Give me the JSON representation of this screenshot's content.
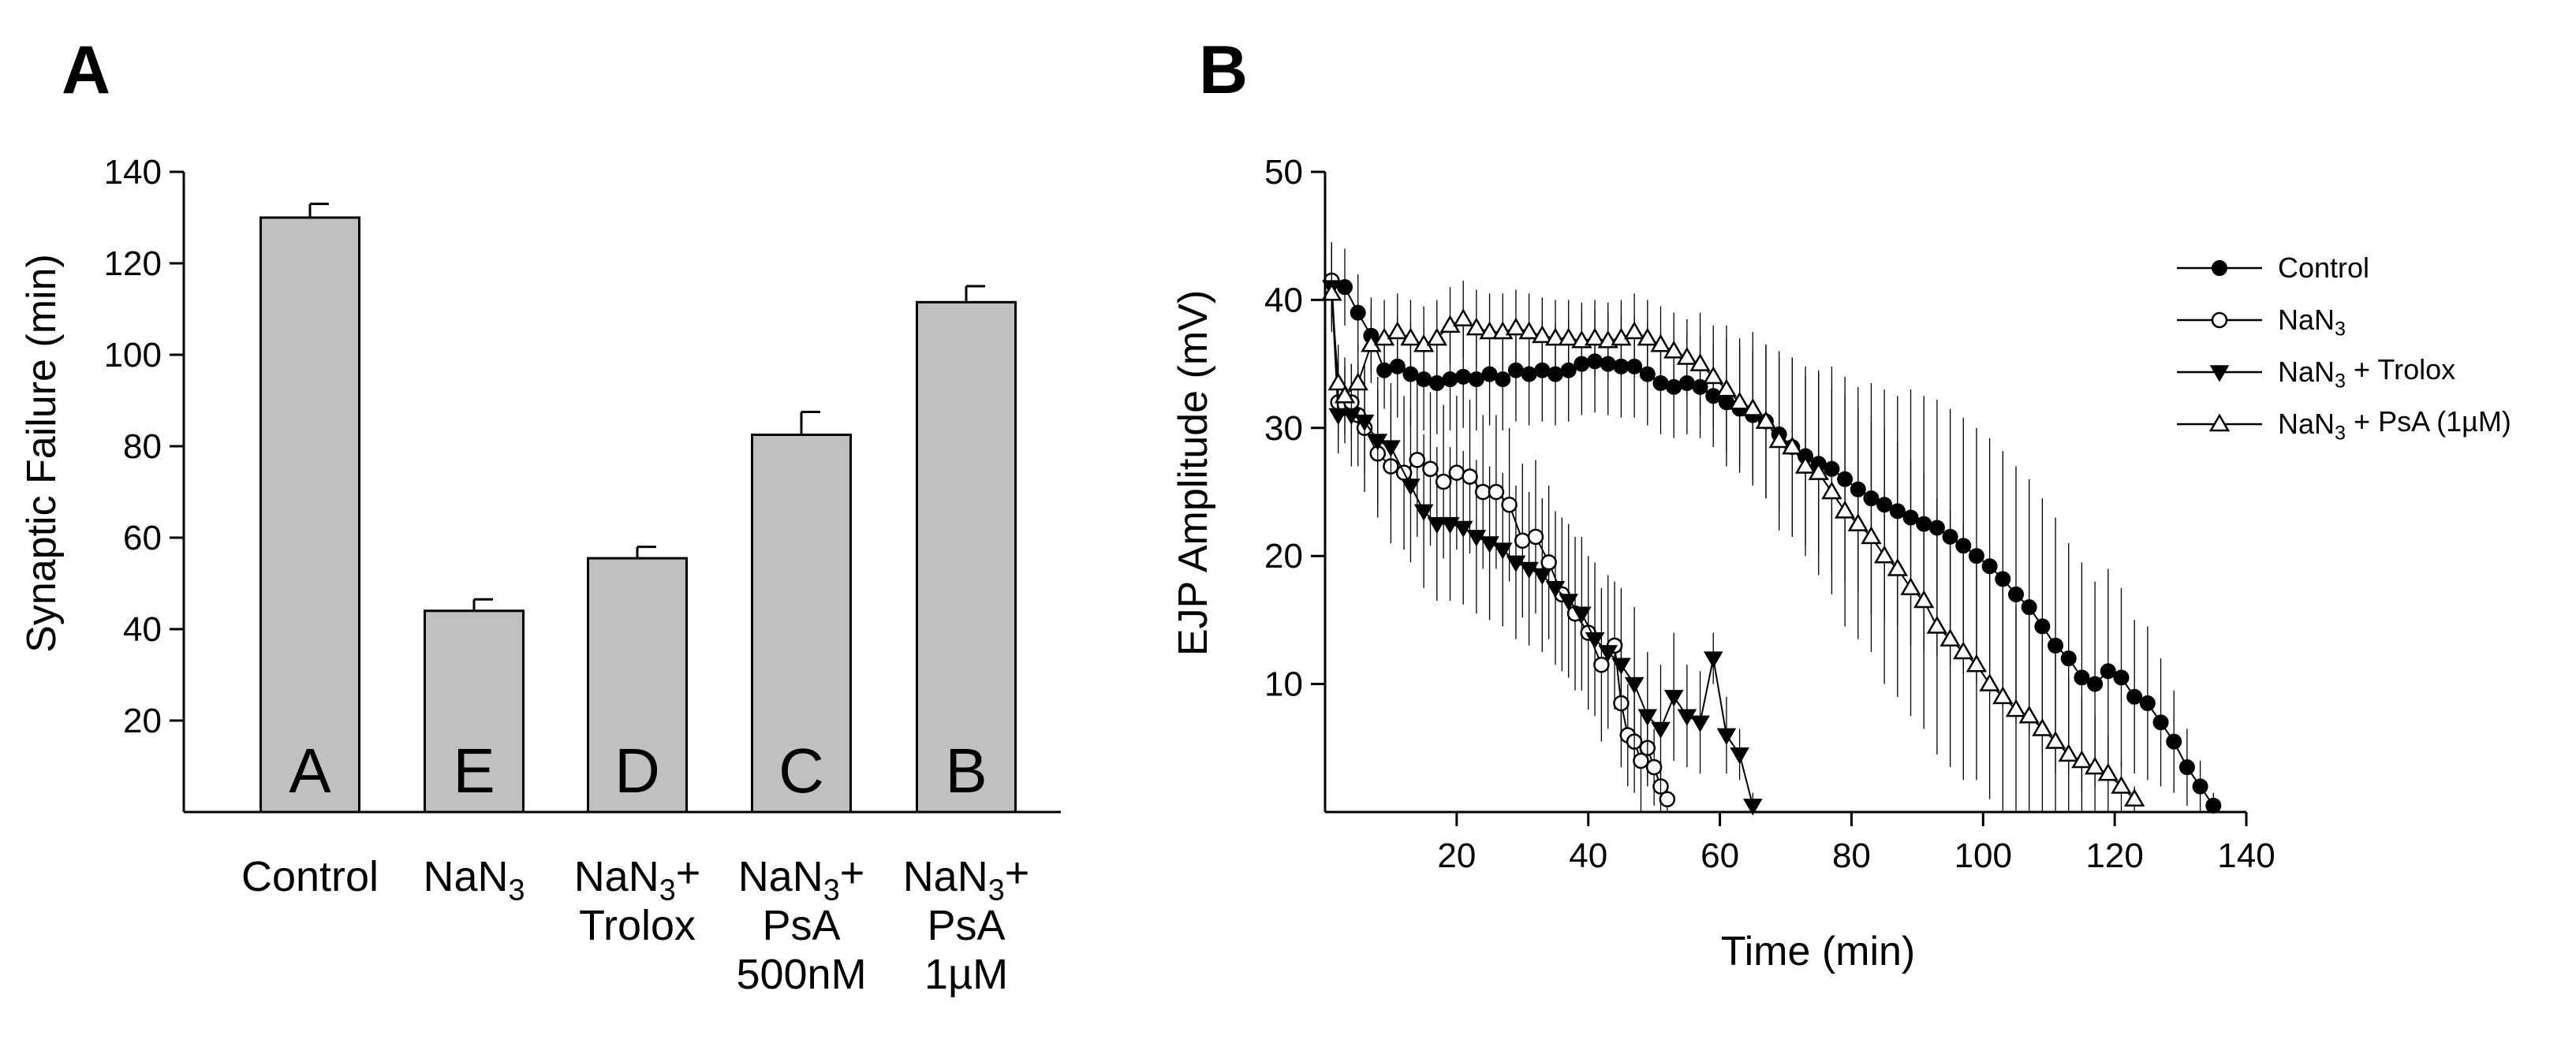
{
  "chart_data": [
    {
      "panel": "A",
      "type": "bar",
      "ylabel": "Synaptic Failure (min)",
      "ylim": [
        0,
        140
      ],
      "yticks": [
        20,
        40,
        60,
        80,
        100,
        120,
        140
      ],
      "categories": [
        {
          "lines": [
            "Control"
          ],
          "value": 130,
          "error": 3,
          "letter": "A"
        },
        {
          "lines": [
            "NaN3"
          ],
          "value": 44,
          "error": 2.5,
          "letter": "E"
        },
        {
          "lines": [
            "NaN3+",
            "Trolox"
          ],
          "value": 55.5,
          "error": 2.5,
          "letter": "D"
        },
        {
          "lines": [
            "NaN3+",
            "PsA",
            "500nM"
          ],
          "value": 82.5,
          "error": 5,
          "letter": "C"
        },
        {
          "lines": [
            "NaN3+",
            "PsA",
            "1µM"
          ],
          "value": 111.5,
          "error": 3.5,
          "letter": "B"
        }
      ],
      "bar_color": "#c0c0c0"
    },
    {
      "panel": "B",
      "type": "line",
      "xlabel": "Time (min)",
      "ylabel": "EJP Amplitude (mV)",
      "xlim": [
        0,
        140
      ],
      "ylim": [
        0,
        50
      ],
      "xticks": [
        20,
        40,
        60,
        80,
        100,
        120,
        140
      ],
      "yticks": [
        10,
        20,
        30,
        40,
        50
      ],
      "series": [
        {
          "name": "Control",
          "marker": "filled-circle",
          "x": [
            1,
            3,
            5,
            7,
            9,
            11,
            13,
            15,
            17,
            19,
            21,
            23,
            25,
            27,
            29,
            31,
            33,
            35,
            37,
            39,
            41,
            43,
            45,
            47,
            49,
            51,
            53,
            55,
            57,
            59,
            61,
            63,
            65,
            67,
            69,
            71,
            73,
            75,
            77,
            79,
            81,
            83,
            85,
            87,
            89,
            91,
            93,
            95,
            97,
            99,
            101,
            103,
            105,
            107,
            109,
            111,
            113,
            115,
            117,
            119,
            121,
            123,
            125,
            127,
            129,
            131,
            133,
            135
          ],
          "y": [
            41.5,
            41.0,
            39.0,
            37.2,
            34.5,
            34.8,
            34.2,
            33.8,
            33.5,
            33.8,
            34.0,
            33.8,
            34.2,
            33.8,
            34.5,
            34.2,
            34.5,
            34.2,
            34.5,
            35.0,
            35.2,
            35.0,
            34.8,
            34.8,
            34.2,
            33.5,
            33.2,
            33.5,
            33.2,
            32.5,
            32.0,
            31.5,
            31.0,
            30.5,
            29.5,
            28.5,
            27.8,
            27.2,
            26.8,
            26.0,
            25.2,
            24.5,
            24.0,
            23.5,
            23.0,
            22.5,
            22.2,
            21.5,
            20.8,
            20.0,
            19.2,
            18.2,
            17.0,
            16.0,
            14.5,
            13.0,
            12.0,
            10.5,
            10.0,
            11.0,
            10.5,
            9.0,
            8.5,
            7.0,
            5.5,
            3.5,
            2.0,
            0.5
          ],
          "err": [
            3,
            3,
            3,
            3,
            3,
            4,
            4,
            4,
            4,
            4,
            4,
            4,
            4,
            4,
            4,
            4,
            4,
            4,
            4,
            4,
            4,
            4,
            4,
            4,
            4,
            4,
            4,
            4,
            4,
            4,
            5,
            5,
            5,
            6,
            6,
            7,
            7,
            7,
            8,
            8,
            8,
            9,
            9,
            9,
            10,
            10,
            10,
            10,
            10,
            10,
            10,
            10,
            10,
            10,
            10,
            10,
            9,
            9,
            8,
            8,
            7,
            6,
            6,
            5,
            4,
            3,
            2,
            1
          ]
        },
        {
          "name": "NaN3",
          "marker": "open-circle",
          "x": [
            1,
            2,
            3,
            4,
            5,
            6,
            8,
            10,
            12,
            14,
            16,
            18,
            20,
            22,
            24,
            26,
            28,
            30,
            32,
            34,
            36,
            38,
            40,
            42,
            44,
            45,
            46,
            47,
            48,
            49,
            50,
            51,
            52
          ],
          "y": [
            41.5,
            32.0,
            31.8,
            32.0,
            31.0,
            30.0,
            28.0,
            27.0,
            26.5,
            27.5,
            26.8,
            25.8,
            26.5,
            26.2,
            25.0,
            25.0,
            24.0,
            21.2,
            21.5,
            19.5,
            17.0,
            15.5,
            14.0,
            11.5,
            13.0,
            8.5,
            6.0,
            5.5,
            4.0,
            5.0,
            3.5,
            2.0,
            1.0
          ],
          "err": [
            3,
            3,
            3,
            3,
            4,
            5,
            5,
            6,
            6,
            6,
            6,
            6,
            6,
            6,
            6,
            6,
            6,
            6,
            6,
            6,
            6,
            6,
            6,
            6,
            5,
            5,
            4,
            4,
            4,
            3,
            3,
            2,
            1
          ]
        },
        {
          "name": "NaN3 + Trolox",
          "marker": "filled-triangle-down",
          "x": [
            1,
            2,
            4,
            6,
            8,
            10,
            13,
            15,
            17,
            19,
            21,
            23,
            25,
            27,
            29,
            31,
            33,
            35,
            37,
            39,
            41,
            43,
            45,
            47,
            49,
            51,
            53,
            55,
            57,
            59,
            61,
            63,
            65
          ],
          "y": [
            41.0,
            31.0,
            31.0,
            30.5,
            29.0,
            28.5,
            25.5,
            23.5,
            22.5,
            22.5,
            22.2,
            21.5,
            21.0,
            20.5,
            19.5,
            19.0,
            18.5,
            17.5,
            16.5,
            15.5,
            13.5,
            12.5,
            11.5,
            10.0,
            7.5,
            6.5,
            9.0,
            7.5,
            7.0,
            12.0,
            6.0,
            4.5,
            0.5
          ],
          "err": [
            3,
            3,
            4,
            4,
            5,
            5,
            6,
            6,
            6,
            6,
            6,
            6,
            6,
            6,
            6,
            6,
            6,
            6,
            6,
            6,
            6,
            6,
            6,
            6,
            5,
            5,
            5,
            4,
            4,
            2,
            3,
            2,
            1
          ]
        },
        {
          "name": "NaN3 + PsA (1µM)",
          "marker": "open-triangle-up",
          "x": [
            1,
            2,
            3,
            5,
            7,
            9,
            11,
            13,
            15,
            17,
            19,
            21,
            23,
            25,
            27,
            29,
            31,
            33,
            35,
            37,
            39,
            41,
            43,
            45,
            47,
            49,
            51,
            53,
            55,
            57,
            59,
            61,
            63,
            65,
            67,
            69,
            71,
            73,
            75,
            77,
            79,
            81,
            83,
            85,
            87,
            89,
            91,
            93,
            95,
            97,
            99,
            101,
            103,
            105,
            107,
            109,
            111,
            113,
            115,
            117,
            119,
            121,
            123
          ],
          "y": [
            40.5,
            33.5,
            32.5,
            33.5,
            36.5,
            37.0,
            37.5,
            37.0,
            36.5,
            37.0,
            38.0,
            38.5,
            37.8,
            37.5,
            37.5,
            37.8,
            37.5,
            37.2,
            37.0,
            37.0,
            36.8,
            37.0,
            36.8,
            37.0,
            37.5,
            37.0,
            36.5,
            36.0,
            35.5,
            35.0,
            34.0,
            33.0,
            32.0,
            31.5,
            30.5,
            29.0,
            28.5,
            27.0,
            26.5,
            25.0,
            23.5,
            22.5,
            21.5,
            20.0,
            19.0,
            17.5,
            16.5,
            14.5,
            13.5,
            12.5,
            11.5,
            10.0,
            9.0,
            8.0,
            7.5,
            6.5,
            5.5,
            4.5,
            4.0,
            3.5,
            3.0,
            2.0,
            1.0
          ],
          "err": [
            3,
            3,
            3,
            3,
            3,
            3,
            3,
            3,
            3,
            3,
            3,
            3,
            3,
            3,
            3,
            3,
            3,
            3,
            3,
            3,
            3,
            3,
            3,
            3,
            3,
            3,
            3,
            3,
            3,
            4,
            4,
            5,
            5,
            6,
            6,
            7,
            7,
            7,
            8,
            8,
            9,
            9,
            9,
            10,
            10,
            10,
            10,
            10,
            10,
            10,
            9,
            9,
            9,
            8,
            8,
            7,
            7,
            6,
            5,
            4,
            3,
            2,
            1
          ]
        }
      ]
    }
  ],
  "panels": {
    "a": "A",
    "b": "B"
  },
  "legend": [
    {
      "base": "Control",
      "sub": "",
      "rest": ""
    },
    {
      "base": "NaN",
      "sub": "3",
      "rest": ""
    },
    {
      "base": "NaN",
      "sub": "3",
      "rest": " + Trolox"
    },
    {
      "base": "NaN",
      "sub": "3",
      "rest": " + PsA (1µM)"
    }
  ]
}
